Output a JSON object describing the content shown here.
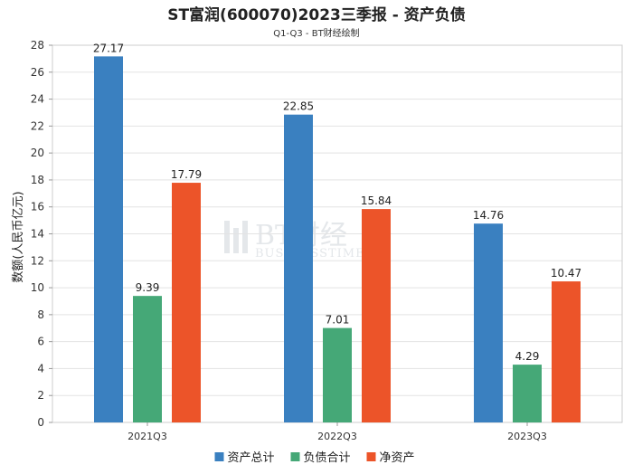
{
  "title": "ST富润(600070)2023三季报 - 资产负债",
  "subtitle": "Q1-Q3 - BT财经绘制",
  "watermark": {
    "brand": "BT财经",
    "sub": "BUSINESSTIMES"
  },
  "chart_data": {
    "type": "bar",
    "categories": [
      "2021Q3",
      "2022Q3",
      "2023Q3"
    ],
    "series": [
      {
        "name": "资产总计",
        "color": "#3a80c0",
        "values": [
          27.17,
          22.85,
          14.76
        ]
      },
      {
        "name": "负债合计",
        "color": "#45a877",
        "values": [
          9.39,
          7.01,
          4.29
        ]
      },
      {
        "name": "净资产",
        "color": "#ec5429",
        "values": [
          17.79,
          15.84,
          10.47
        ]
      }
    ],
    "ylabel": "数额(人民币亿元)",
    "ylim": [
      0,
      28
    ],
    "yticks": [
      0,
      2,
      4,
      6,
      8,
      10,
      12,
      14,
      16,
      18,
      20,
      22,
      24,
      26,
      28
    ],
    "grid": true,
    "legend_position": "bottom"
  }
}
